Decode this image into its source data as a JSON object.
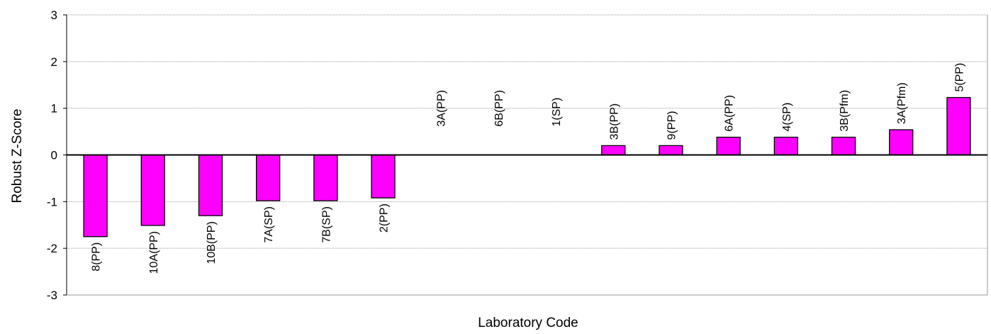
{
  "chart_data": {
    "type": "bar",
    "title": "",
    "xlabel": "Laboratory Code",
    "ylabel": "Robust Z-Score",
    "ylim": [
      -3,
      3
    ],
    "yticks": [
      -3,
      -2,
      -1,
      0,
      1,
      2,
      3
    ],
    "grid": true,
    "legend": "none",
    "bar_color": "#FF00FF",
    "categories": [
      "8(PP)",
      "10A(PP)",
      "10B(PP)",
      "7A(SP)",
      "7B(SP)",
      "2(PP)",
      "3A(PP)",
      "6B(PP)",
      "1(SP)",
      "3B(PP)",
      "9(PP)",
      "6A(PP)",
      "4(SP)",
      "3B(Pfm)",
      "3A(Pfm)",
      "5(PP)"
    ],
    "values": [
      -1.75,
      -1.51,
      -1.3,
      -0.98,
      -0.98,
      -0.92,
      0.0,
      0.0,
      0.0,
      0.2,
      0.2,
      0.38,
      0.38,
      0.38,
      0.54,
      1.23
    ]
  }
}
